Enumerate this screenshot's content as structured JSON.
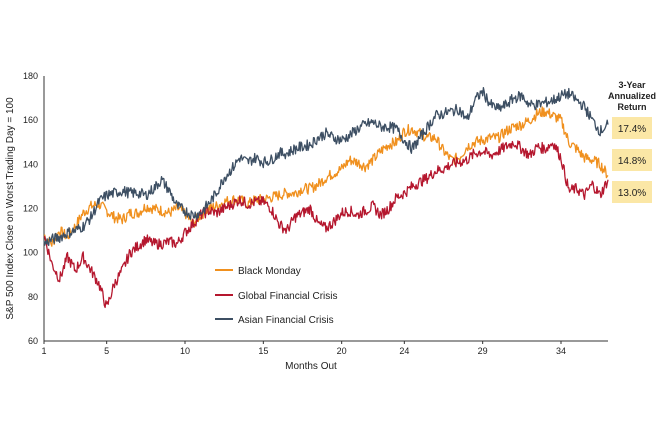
{
  "chart_data": {
    "type": "line",
    "xlabel": "Months Out",
    "ylabel": "S&P 500 Index Close on Worst Trading Day = 100",
    "xlim": [
      1,
      37
    ],
    "ylim": [
      60,
      180
    ],
    "x_ticks": [
      1,
      5,
      10,
      15,
      20,
      24,
      29,
      34
    ],
    "y_ticks": [
      60,
      80,
      100,
      120,
      140,
      160,
      180
    ],
    "grid": false,
    "legend_position": "lower-middle",
    "series": [
      {
        "name": "Black Monday",
        "color": "#f0901e",
        "points": [
          [
            1,
            108
          ],
          [
            1.5,
            104
          ],
          [
            2,
            110
          ],
          [
            2.5,
            107
          ],
          [
            3,
            112
          ],
          [
            3.5,
            118
          ],
          [
            4,
            121
          ],
          [
            4.5,
            122
          ],
          [
            5,
            119
          ],
          [
            5.5,
            116
          ],
          [
            6,
            115
          ],
          [
            6.5,
            118
          ],
          [
            7,
            118
          ],
          [
            7.5,
            121
          ],
          [
            8,
            120
          ],
          [
            8.5,
            119
          ],
          [
            9,
            118
          ],
          [
            9.5,
            120
          ],
          [
            10,
            118
          ],
          [
            10.5,
            113
          ],
          [
            11,
            117
          ],
          [
            11.5,
            120
          ],
          [
            12,
            121
          ],
          [
            12.5,
            123
          ],
          [
            13,
            124
          ],
          [
            13.5,
            124
          ],
          [
            14,
            122
          ],
          [
            14.5,
            124
          ],
          [
            15,
            124
          ],
          [
            15.5,
            125
          ],
          [
            16,
            126
          ],
          [
            16.5,
            127
          ],
          [
            17,
            127
          ],
          [
            17.5,
            129
          ],
          [
            18,
            129
          ],
          [
            18.5,
            131
          ],
          [
            19,
            134
          ],
          [
            19.5,
            136
          ],
          [
            20,
            138
          ],
          [
            20.5,
            142
          ],
          [
            21,
            141
          ],
          [
            21.5,
            139
          ],
          [
            22,
            142
          ],
          [
            22.5,
            146
          ],
          [
            23,
            149
          ],
          [
            23.5,
            150
          ],
          [
            24,
            155
          ],
          [
            24.5,
            156
          ],
          [
            25,
            154
          ],
          [
            25.5,
            152
          ],
          [
            26,
            152
          ],
          [
            26.5,
            146
          ],
          [
            27,
            142
          ],
          [
            27.5,
            143
          ],
          [
            28,
            148
          ],
          [
            28.5,
            150
          ],
          [
            29,
            151
          ],
          [
            29.5,
            152
          ],
          [
            30,
            152
          ],
          [
            30.5,
            155
          ],
          [
            31,
            157
          ],
          [
            31.5,
            158
          ],
          [
            32,
            160
          ],
          [
            32.5,
            163
          ],
          [
            33,
            164
          ],
          [
            33.5,
            162
          ],
          [
            34,
            160
          ],
          [
            34.5,
            150
          ],
          [
            35,
            147
          ],
          [
            35.5,
            143
          ],
          [
            36,
            142
          ],
          [
            36.5,
            140
          ],
          [
            37,
            135
          ]
        ]
      },
      {
        "name": "Global Financial Crisis",
        "color": "#b5172e",
        "points": [
          [
            1,
            108
          ],
          [
            1.5,
            95
          ],
          [
            2,
            88
          ],
          [
            2.5,
            98
          ],
          [
            3,
            92
          ],
          [
            3.5,
            98
          ],
          [
            4,
            92
          ],
          [
            4.5,
            86
          ],
          [
            5,
            75
          ],
          [
            5.5,
            86
          ],
          [
            6,
            92
          ],
          [
            6.5,
            100
          ],
          [
            7,
            103
          ],
          [
            7.5,
            106
          ],
          [
            8,
            104
          ],
          [
            8.5,
            104
          ],
          [
            9,
            105
          ],
          [
            9.5,
            104
          ],
          [
            10,
            109
          ],
          [
            10.5,
            113
          ],
          [
            11,
            117
          ],
          [
            11.5,
            119
          ],
          [
            12,
            118
          ],
          [
            12.5,
            120
          ],
          [
            13,
            122
          ],
          [
            13.5,
            124
          ],
          [
            14,
            122
          ],
          [
            14.5,
            123
          ],
          [
            15,
            123
          ],
          [
            15.5,
            120
          ],
          [
            16,
            113
          ],
          [
            16.5,
            110
          ],
          [
            17,
            116
          ],
          [
            17.5,
            118
          ],
          [
            18,
            120
          ],
          [
            18.5,
            113
          ],
          [
            19,
            111
          ],
          [
            19.5,
            114
          ],
          [
            20,
            118
          ],
          [
            20.5,
            119
          ],
          [
            21,
            117
          ],
          [
            21.5,
            119
          ],
          [
            22,
            121
          ],
          [
            22.5,
            117
          ],
          [
            23,
            120
          ],
          [
            23.5,
            125
          ],
          [
            24,
            127
          ],
          [
            24.5,
            130
          ],
          [
            25,
            132
          ],
          [
            25.5,
            134
          ],
          [
            26,
            137
          ],
          [
            26.5,
            138
          ],
          [
            27,
            140
          ],
          [
            27.5,
            141
          ],
          [
            28,
            142
          ],
          [
            28.5,
            145
          ],
          [
            29,
            146
          ],
          [
            29.5,
            144
          ],
          [
            30,
            146
          ],
          [
            30.5,
            148
          ],
          [
            31,
            150
          ],
          [
            31.5,
            147
          ],
          [
            32,
            144
          ],
          [
            32.5,
            148
          ],
          [
            33,
            147
          ],
          [
            33.5,
            150
          ],
          [
            34,
            143
          ],
          [
            34.5,
            128
          ],
          [
            35,
            129
          ],
          [
            35.5,
            126
          ],
          [
            36,
            131
          ],
          [
            36.5,
            126
          ],
          [
            37,
            133
          ]
        ]
      },
      {
        "name": "Asian Financial Crisis",
        "color": "#3d4f63",
        "points": [
          [
            1,
            104
          ],
          [
            1.5,
            106
          ],
          [
            2,
            107
          ],
          [
            2.5,
            109
          ],
          [
            3,
            110
          ],
          [
            3.5,
            112
          ],
          [
            4,
            116
          ],
          [
            4.5,
            123
          ],
          [
            5,
            126
          ],
          [
            5.5,
            127
          ],
          [
            6,
            128
          ],
          [
            6.5,
            127
          ],
          [
            7,
            127
          ],
          [
            7.5,
            126
          ],
          [
            8,
            129
          ],
          [
            8.5,
            133
          ],
          [
            9,
            128
          ],
          [
            9.5,
            121
          ],
          [
            10,
            119
          ],
          [
            10.5,
            117
          ],
          [
            11,
            118
          ],
          [
            11.5,
            122
          ],
          [
            12,
            127
          ],
          [
            12.5,
            134
          ],
          [
            13,
            138
          ],
          [
            13.5,
            143
          ],
          [
            14,
            141
          ],
          [
            14.5,
            143
          ],
          [
            15,
            141
          ],
          [
            15.5,
            142
          ],
          [
            16,
            145
          ],
          [
            16.5,
            145
          ],
          [
            17,
            147
          ],
          [
            17.5,
            148
          ],
          [
            18,
            149
          ],
          [
            18.5,
            152
          ],
          [
            19,
            154
          ],
          [
            19.5,
            152
          ],
          [
            20,
            151
          ],
          [
            20.5,
            153
          ],
          [
            21,
            156
          ],
          [
            21.5,
            158
          ],
          [
            22,
            159
          ],
          [
            22.5,
            157
          ],
          [
            23,
            157
          ],
          [
            23.5,
            156
          ],
          [
            24,
            151
          ],
          [
            24.5,
            147
          ],
          [
            25,
            152
          ],
          [
            25.5,
            157
          ],
          [
            26,
            162
          ],
          [
            26.5,
            163
          ],
          [
            27,
            164
          ],
          [
            27.5,
            165
          ],
          [
            28,
            160
          ],
          [
            28.5,
            169
          ],
          [
            29,
            173
          ],
          [
            29.5,
            167
          ],
          [
            30,
            165
          ],
          [
            30.5,
            167
          ],
          [
            31,
            170
          ],
          [
            31.5,
            171
          ],
          [
            32,
            167
          ],
          [
            32.5,
            167
          ],
          [
            33,
            168
          ],
          [
            33.5,
            169
          ],
          [
            34,
            171
          ],
          [
            34.5,
            172
          ],
          [
            35,
            169
          ],
          [
            35.5,
            166
          ],
          [
            36,
            160
          ],
          [
            36.5,
            155
          ],
          [
            37,
            158
          ]
        ]
      }
    ],
    "returns_header": "3-Year Annualized Return",
    "returns": [
      {
        "series": "Asian Financial Crisis",
        "label": "17.4%",
        "value": 17.4
      },
      {
        "series": "Black Monday",
        "label": "14.8%",
        "value": 14.8
      },
      {
        "series": "Global Financial Crisis",
        "label": "13.0%",
        "value": 13.0
      }
    ],
    "returns_box_color": "#fbe7a6"
  }
}
